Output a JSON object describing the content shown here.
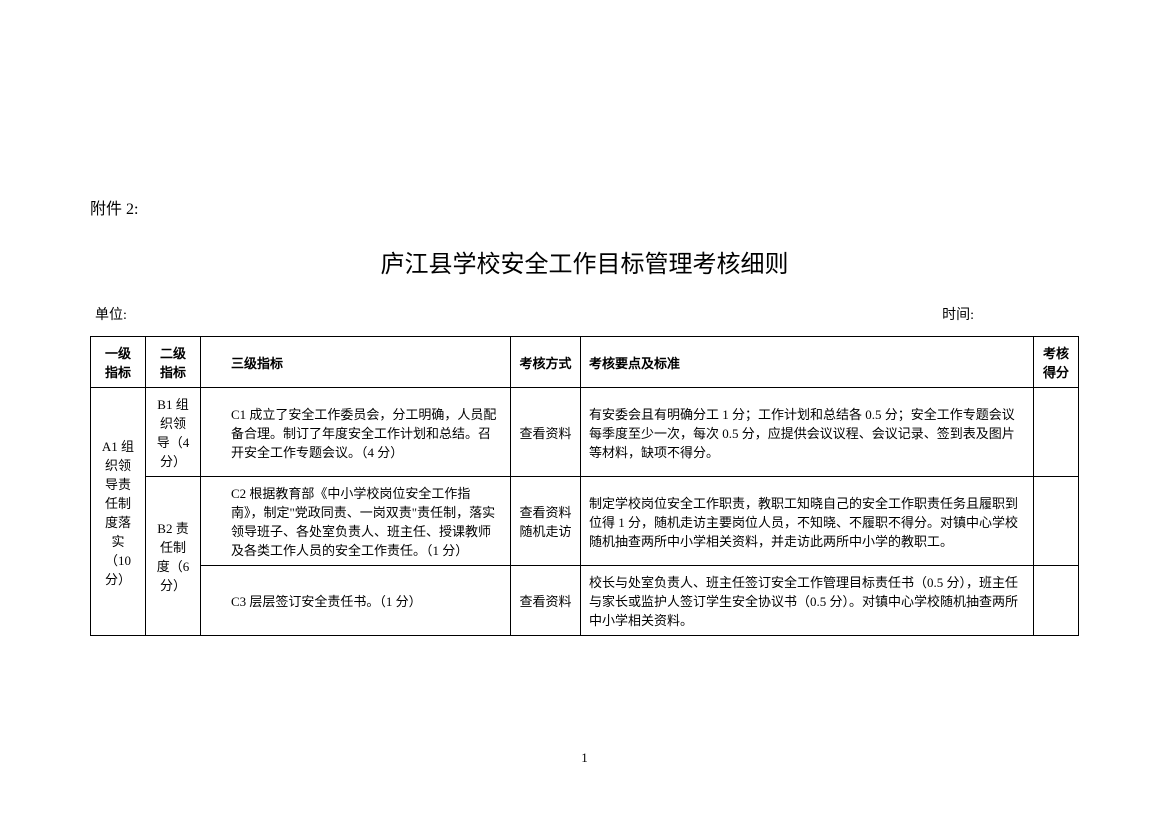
{
  "document": {
    "attachment_label": "附件 2:",
    "title": "庐江县学校安全工作目标管理考核细则",
    "unit_label": "单位:",
    "time_label": "时间:",
    "page_number": "1"
  },
  "table": {
    "headers": {
      "level1": "一级指标",
      "level2": "二级指标",
      "level3": "三级指标",
      "method": "考核方式",
      "standard": "考核要点及标准",
      "score": "考核得分"
    },
    "rows": [
      {
        "level1": "A1 组织领导责任制度落实（10分）",
        "level2": "B1 组织领导（4 分）",
        "level3": "C1 成立了安全工作委员会，分工明确，人员配备合理。制订了年度安全工作计划和总结。召开安全工作专题会议。（4 分）",
        "method": "查看资料",
        "standard": "有安委会且有明确分工 1 分；工作计划和总结各 0.5 分；安全工作专题会议每季度至少一次，每次 0.5 分，应提供会议议程、会议记录、签到表及图片等材料，缺项不得分。"
      },
      {
        "level2": "B2 责任制度（6 分）",
        "level3": "C2 根据教育部《中小学校岗位安全工作指南》，制定\"党政同责、一岗双责\"责任制，落实领导班子、各处室负责人、班主任、授课教师及各类工作人员的安全工作责任。（1 分）",
        "method": "查看资料随机走访",
        "standard": "制定学校岗位安全工作职责，教职工知晓自己的安全工作职责任务且履职到位得 1 分，随机走访主要岗位人员，不知晓、不履职不得分。对镇中心学校随机抽查两所中小学相关资料，并走访此两所中小学的教职工。"
      },
      {
        "level3": "C3 层层签订安全责任书。（1 分）",
        "method": "查看资料",
        "standard": "校长与处室负责人、班主任签订安全工作管理目标责任书（0.5 分），班主任与家长或监护人签订学生安全协议书（0.5 分）。对镇中心学校随机抽查两所中小学相关资料。"
      }
    ]
  },
  "styling": {
    "background_color": "#ffffff",
    "text_color": "#000000",
    "border_color": "#000000",
    "title_fontsize": 24,
    "body_fontsize": 13,
    "label_fontsize": 16,
    "meta_fontsize": 14
  }
}
